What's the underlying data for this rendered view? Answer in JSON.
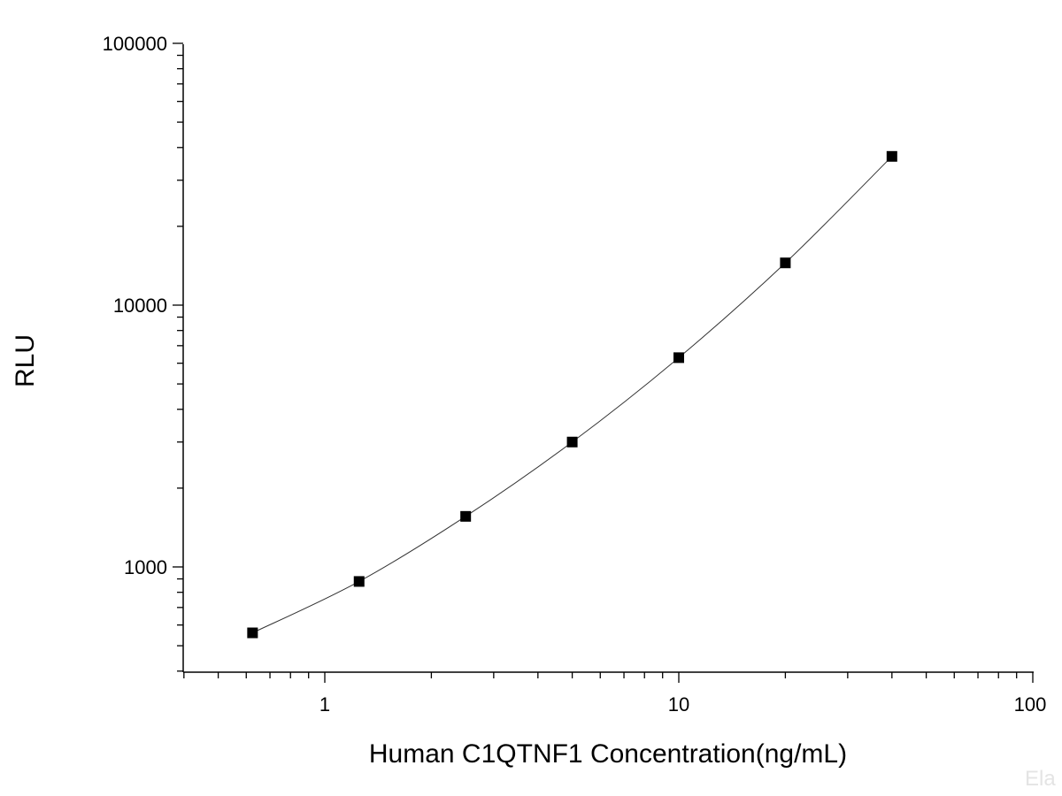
{
  "chart_data": {
    "type": "scatter",
    "xlabel": "Human C1QTNF1 Concentration(ng/mL)",
    "ylabel": "RLU",
    "x_scale": "log",
    "y_scale": "log",
    "xlim": [
      0.4,
      100
    ],
    "ylim": [
      400,
      100000
    ],
    "x_tick_labels": [
      "1",
      "10",
      "100"
    ],
    "y_tick_labels": [
      "1000",
      "10000",
      "100000"
    ],
    "grid": false,
    "legend": "none",
    "series": [
      {
        "x": [
          0.625,
          1.25,
          2.5,
          5,
          10,
          20,
          40
        ],
        "y": [
          560,
          880,
          1560,
          3000,
          6300,
          14500,
          37000
        ],
        "marker": "square",
        "line": "smooth fit",
        "color": "#000000"
      }
    ],
    "watermark": "Ela"
  }
}
